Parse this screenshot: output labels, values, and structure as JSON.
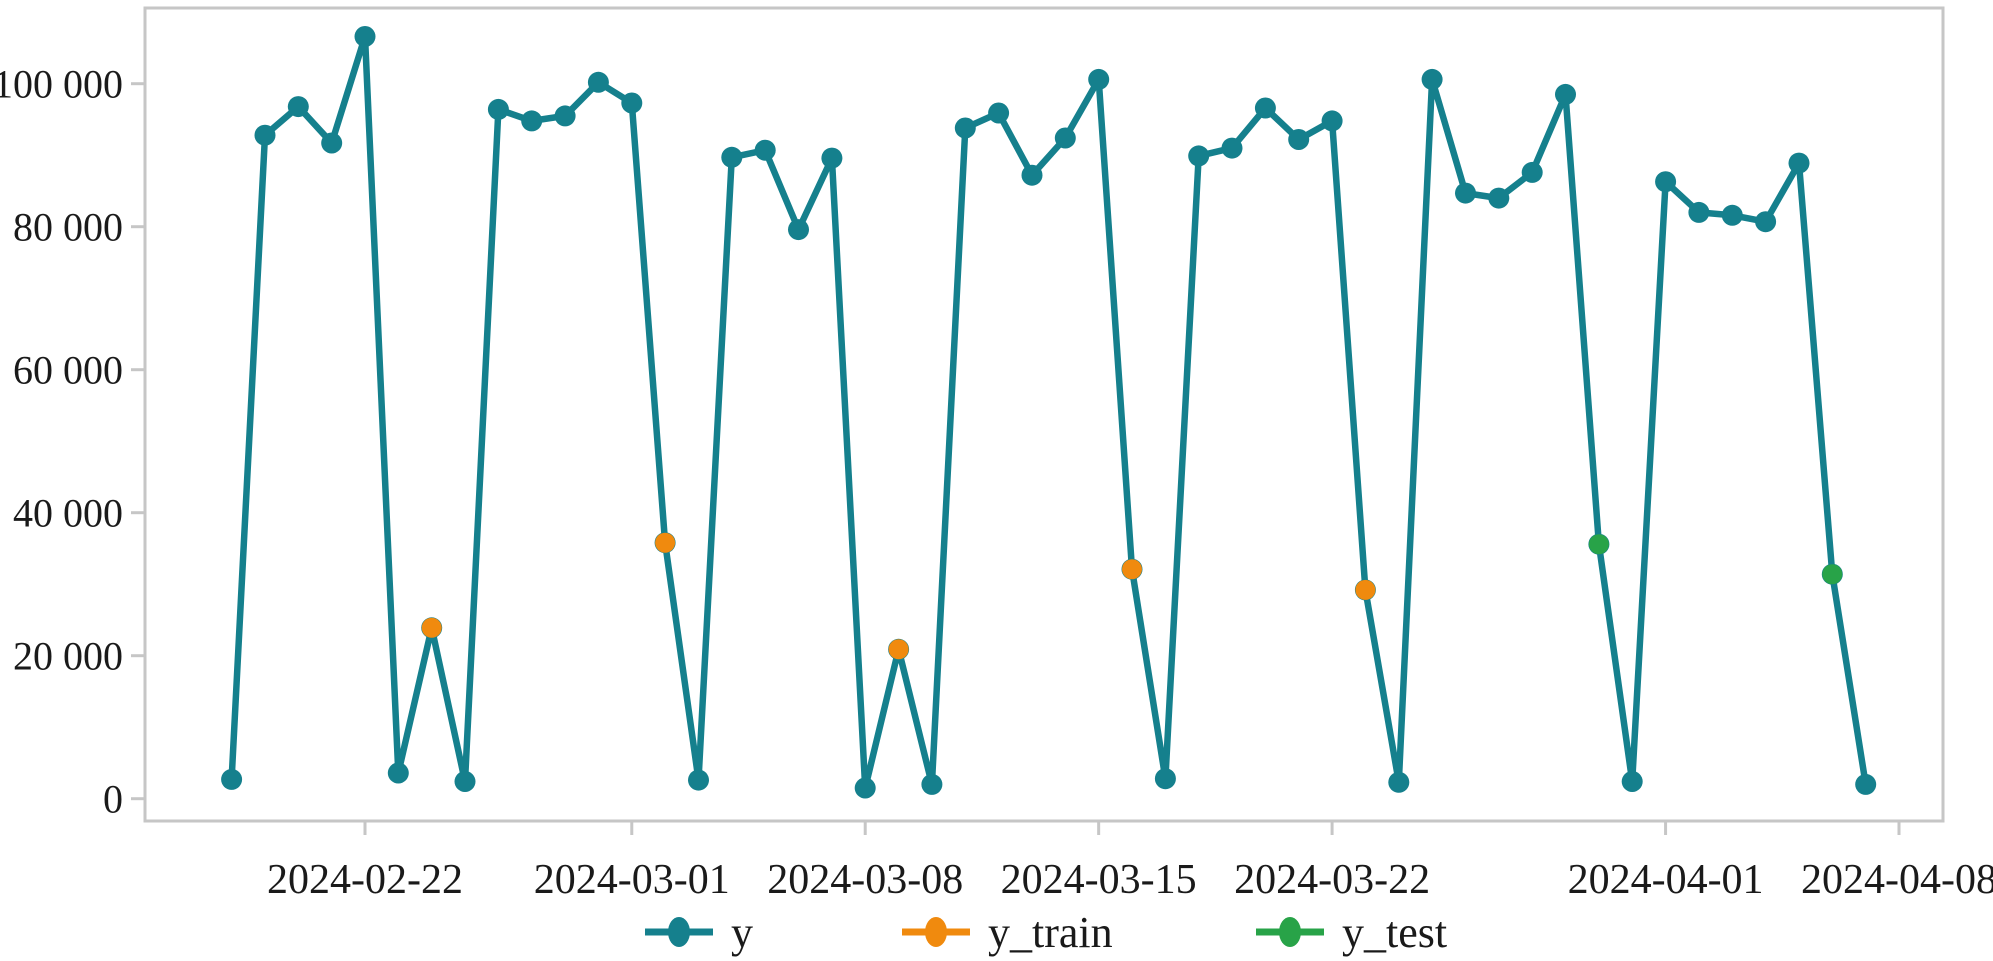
{
  "figure": {
    "background": "#ffffff",
    "text_color": "#1a1a1a",
    "spine_color": "#c6c6c6"
  },
  "chart_data": {
    "type": "line",
    "title": "",
    "xlabel": "",
    "ylabel": "",
    "x_axis": {
      "tick_dates": [
        "2024-02-22",
        "2024-03-01",
        "2024-03-08",
        "2024-03-15",
        "2024-03-22",
        "2024-04-01",
        "2024-04-08"
      ],
      "tick_labels": [
        "2024-02-22",
        "2024-03-01",
        "2024-03-08",
        "2024-03-15",
        "2024-03-22",
        "2024-04-01",
        "2024-04-08"
      ],
      "visible_range": [
        "2024-02-15",
        "2024-04-09"
      ]
    },
    "y_axis": {
      "tick_values": [
        0,
        20000,
        40000,
        60000,
        80000,
        100000
      ],
      "tick_labels": [
        "0",
        "20 000",
        "40 000",
        "60 000",
        "80 000",
        "100 000"
      ],
      "ylim": [
        -3100,
        110600
      ]
    },
    "grid": "off",
    "legend": {
      "position": "bottom-center",
      "entries": [
        "y",
        "y_train",
        "y_test"
      ]
    },
    "series": [
      {
        "name": "y",
        "color": "#15808d",
        "marker": "circle",
        "points": [
          [
            "2024-02-18",
            2700
          ],
          [
            "2024-02-19",
            92800
          ],
          [
            "2024-02-20",
            96800
          ],
          [
            "2024-02-21",
            91700
          ],
          [
            "2024-02-22",
            106600
          ],
          [
            "2024-02-23",
            3600
          ],
          [
            "2024-02-24",
            23900
          ],
          [
            "2024-02-25",
            2400
          ],
          [
            "2024-02-26",
            96400
          ],
          [
            "2024-02-27",
            94800
          ],
          [
            "2024-02-28",
            95500
          ],
          [
            "2024-02-29",
            100200
          ],
          [
            "2024-03-01",
            97300
          ],
          [
            "2024-03-02",
            35800
          ],
          [
            "2024-03-03",
            2600
          ],
          [
            "2024-03-04",
            89700
          ],
          [
            "2024-03-05",
            90700
          ],
          [
            "2024-03-06",
            79600
          ],
          [
            "2024-03-07",
            89600
          ],
          [
            "2024-03-08",
            1500
          ],
          [
            "2024-03-09",
            20900
          ],
          [
            "2024-03-10",
            2000
          ],
          [
            "2024-03-11",
            93800
          ],
          [
            "2024-03-12",
            95900
          ],
          [
            "2024-03-13",
            87200
          ],
          [
            "2024-03-14",
            92400
          ],
          [
            "2024-03-15",
            100600
          ],
          [
            "2024-03-16",
            32100
          ],
          [
            "2024-03-17",
            2800
          ],
          [
            "2024-03-18",
            89900
          ],
          [
            "2024-03-19",
            91000
          ],
          [
            "2024-03-20",
            96600
          ],
          [
            "2024-03-21",
            92200
          ],
          [
            "2024-03-22",
            94800
          ],
          [
            "2024-03-23",
            29200
          ],
          [
            "2024-03-24",
            2300
          ],
          [
            "2024-03-25",
            100600
          ],
          [
            "2024-03-26",
            84700
          ],
          [
            "2024-03-27",
            84000
          ],
          [
            "2024-03-28",
            87600
          ],
          [
            "2024-03-29",
            98500
          ],
          [
            "2024-03-30",
            35600
          ],
          [
            "2024-03-31",
            2400
          ],
          [
            "2024-04-01",
            86300
          ],
          [
            "2024-04-02",
            82000
          ],
          [
            "2024-04-03",
            81600
          ],
          [
            "2024-04-04",
            80700
          ],
          [
            "2024-04-05",
            88900
          ],
          [
            "2024-04-06",
            31400
          ],
          [
            "2024-04-07",
            2000
          ]
        ]
      },
      {
        "name": "y_train",
        "color": "#f08a0e",
        "marker": "circle",
        "points": [
          [
            "2024-02-24",
            23900
          ],
          [
            "2024-03-02",
            35800
          ],
          [
            "2024-03-09",
            20900
          ],
          [
            "2024-03-16",
            32100
          ],
          [
            "2024-03-23",
            29200
          ]
        ]
      },
      {
        "name": "y_test",
        "color": "#28a348",
        "marker": "circle",
        "points": [
          [
            "2024-03-30",
            35600
          ],
          [
            "2024-04-06",
            31400
          ]
        ]
      }
    ]
  }
}
